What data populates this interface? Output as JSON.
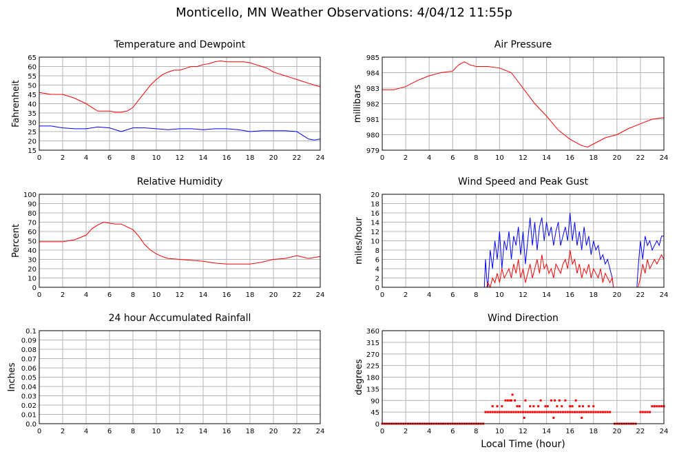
{
  "page": {
    "title": "Monticello, MN Weather Observations: 4/04/12 11:55p"
  },
  "colors": {
    "red": "#ff0000",
    "blue": "#0000ff",
    "grid": "#b4b4b4",
    "axis": "#000000"
  },
  "chart_data": [
    {
      "id": "temperature",
      "type": "line",
      "title": "Temperature and Dewpoint",
      "xlabel": "",
      "ylabel": "Fahrenheit",
      "xlim": [
        0,
        24
      ],
      "ylim": [
        15,
        65
      ],
      "xticks": [
        "0",
        "2",
        "4",
        "6",
        "8",
        "10",
        "12",
        "14",
        "16",
        "18",
        "20",
        "22",
        "24"
      ],
      "yticks": [
        "15",
        "20",
        "25",
        "30",
        "35",
        "40",
        "45",
        "50",
        "55",
        "60",
        "65"
      ],
      "grid": true,
      "series": [
        {
          "color": "#ff0000",
          "style": "line",
          "x": [
            0,
            1,
            2,
            3,
            4,
            4.5,
            5,
            5.5,
            6,
            6.5,
            7,
            7.5,
            8,
            8.5,
            9,
            9.5,
            10,
            10.5,
            11,
            11.5,
            12,
            12.5,
            13,
            13.5,
            14,
            14.5,
            15,
            15.5,
            16,
            16.5,
            17,
            17.5,
            18,
            18.5,
            19,
            19.5,
            20,
            20.5,
            21,
            21.5,
            22,
            22.5,
            23,
            23.5,
            24
          ],
          "y": [
            46,
            45,
            45,
            43,
            40,
            38,
            36,
            36,
            36,
            35.5,
            35.5,
            36,
            38,
            42,
            46,
            50,
            53,
            55.5,
            57,
            58,
            58,
            59,
            60,
            60,
            61,
            61.5,
            62.5,
            63,
            62.5,
            62.5,
            62.5,
            62.5,
            62,
            61,
            60,
            59,
            57,
            56,
            55,
            54,
            53,
            52,
            51,
            50,
            49
          ]
        },
        {
          "color": "#0000ff",
          "style": "line",
          "x": [
            0,
            1,
            2,
            3,
            4,
            5,
            6,
            7,
            8,
            9,
            10,
            11,
            12,
            13,
            14,
            15,
            16,
            17,
            18,
            19,
            20,
            21,
            22,
            22.5,
            23,
            23.5,
            24
          ],
          "y": [
            28,
            28,
            27,
            26.5,
            26.5,
            27.5,
            27,
            25,
            27,
            27,
            26.5,
            26,
            26.5,
            26.5,
            26,
            26.5,
            26.5,
            26,
            25,
            25.5,
            25.5,
            25.5,
            25,
            23,
            21,
            20.5,
            21
          ]
        }
      ]
    },
    {
      "id": "pressure",
      "type": "line",
      "title": "Air Pressure",
      "xlabel": "",
      "ylabel": "millibars",
      "xlim": [
        0,
        24
      ],
      "ylim": [
        979,
        985
      ],
      "xticks": [
        "0",
        "2",
        "4",
        "6",
        "8",
        "10",
        "12",
        "14",
        "16",
        "18",
        "20",
        "22",
        "24"
      ],
      "yticks": [
        "979",
        "980",
        "981",
        "982",
        "983",
        "984",
        "985"
      ],
      "grid": true,
      "series": [
        {
          "color": "#ff0000",
          "style": "line",
          "x": [
            0,
            1,
            2,
            3,
            4,
            5,
            6,
            6.5,
            7,
            7.5,
            8,
            9,
            10,
            11,
            12,
            13,
            14,
            15,
            16,
            17,
            17.5,
            18,
            19,
            20,
            21,
            22,
            23,
            24
          ],
          "y": [
            982.9,
            982.9,
            983.1,
            983.5,
            983.8,
            984.0,
            984.1,
            984.5,
            984.7,
            984.5,
            984.4,
            984.4,
            984.3,
            984.0,
            983.0,
            982.0,
            981.2,
            980.3,
            979.7,
            979.3,
            979.2,
            979.4,
            979.8,
            980.0,
            980.4,
            980.7,
            981.0,
            981.1
          ]
        }
      ]
    },
    {
      "id": "humidity",
      "type": "line",
      "title": "Relative Humidity",
      "xlabel": "",
      "ylabel": "Percent",
      "xlim": [
        0,
        24
      ],
      "ylim": [
        0,
        100
      ],
      "xticks": [
        "0",
        "2",
        "4",
        "6",
        "8",
        "10",
        "12",
        "14",
        "16",
        "18",
        "20",
        "22",
        "24"
      ],
      "yticks": [
        "0",
        "10",
        "20",
        "30",
        "40",
        "50",
        "60",
        "70",
        "80",
        "90",
        "100"
      ],
      "grid": true,
      "series": [
        {
          "color": "#ff0000",
          "style": "line",
          "x": [
            0,
            1,
            2,
            3,
            4,
            4.5,
            5,
            5.5,
            6,
            6.5,
            7,
            7.5,
            8,
            8.5,
            9,
            9.5,
            10,
            10.5,
            11,
            12,
            13,
            14,
            15,
            16,
            17,
            18,
            19,
            20,
            21,
            22,
            23,
            24
          ],
          "y": [
            49,
            49,
            49,
            51,
            56,
            63,
            67,
            70,
            69,
            68,
            68,
            65,
            62,
            55,
            46,
            40,
            36,
            33,
            31,
            30,
            29,
            28,
            26,
            25,
            25,
            25,
            27,
            30,
            31,
            34,
            31,
            33
          ]
        }
      ]
    },
    {
      "id": "wind",
      "type": "line",
      "title": "Wind Speed and Peak Gust",
      "xlabel": "",
      "ylabel": "miles/hour",
      "xlim": [
        0,
        24
      ],
      "ylim": [
        0,
        20
      ],
      "xticks": [
        "0",
        "2",
        "4",
        "6",
        "8",
        "10",
        "12",
        "14",
        "16",
        "18",
        "20",
        "22",
        "24"
      ],
      "yticks": [
        "0",
        "2",
        "4",
        "6",
        "8",
        "10",
        "12",
        "14",
        "16",
        "18",
        "20"
      ],
      "grid": true,
      "series": [
        {
          "color": "#0000ff",
          "style": "line",
          "x": [
            0,
            8.7,
            8.8,
            8.9,
            9.0,
            9.2,
            9.4,
            9.6,
            9.8,
            10.0,
            10.2,
            10.4,
            10.6,
            10.8,
            11.0,
            11.2,
            11.4,
            11.6,
            11.8,
            12.0,
            12.2,
            12.4,
            12.6,
            12.8,
            13.0,
            13.2,
            13.4,
            13.6,
            13.8,
            14.0,
            14.2,
            14.4,
            14.6,
            14.8,
            15.0,
            15.2,
            15.4,
            15.6,
            15.8,
            16.0,
            16.2,
            16.4,
            16.6,
            16.8,
            17.0,
            17.2,
            17.4,
            17.6,
            17.8,
            18.0,
            18.2,
            18.4,
            18.6,
            18.8,
            19.0,
            19.2,
            19.4,
            19.6,
            19.7,
            21.7,
            21.8,
            22.0,
            22.2,
            22.4,
            22.6,
            22.8,
            23.0,
            23.2,
            23.4,
            23.6,
            23.8,
            24.0
          ],
          "y": [
            0,
            0,
            6,
            2,
            0,
            8,
            4,
            10,
            6,
            12,
            4,
            10,
            8,
            12,
            6,
            11,
            9,
            13,
            7,
            12,
            5,
            10,
            15,
            9,
            14,
            8,
            13,
            15,
            10,
            14,
            11,
            13,
            9,
            12,
            14,
            9,
            11,
            13,
            10,
            16,
            10,
            14,
            9,
            12,
            8,
            13,
            9,
            11,
            7,
            10,
            8,
            9,
            6,
            7,
            5,
            6,
            4,
            2,
            0,
            0,
            4,
            10,
            6,
            11,
            9,
            10,
            8,
            9,
            10,
            9,
            11,
            11
          ]
        },
        {
          "color": "#ff0000",
          "style": "line",
          "x": [
            0,
            8.9,
            9.0,
            9.2,
            9.4,
            9.6,
            9.8,
            10.0,
            10.2,
            10.4,
            10.6,
            10.8,
            11.0,
            11.2,
            11.4,
            11.6,
            11.8,
            12.0,
            12.2,
            12.4,
            12.6,
            12.8,
            13.0,
            13.2,
            13.4,
            13.6,
            13.8,
            14.0,
            14.2,
            14.4,
            14.6,
            14.8,
            15.0,
            15.2,
            15.4,
            15.6,
            15.8,
            16.0,
            16.2,
            16.4,
            16.6,
            16.8,
            17.0,
            17.2,
            17.4,
            17.6,
            17.8,
            18.0,
            18.2,
            18.4,
            18.6,
            18.8,
            19.0,
            19.2,
            19.4,
            19.6,
            19.7,
            21.8,
            22.0,
            22.2,
            22.4,
            22.6,
            22.8,
            23.0,
            23.2,
            23.4,
            23.6,
            23.8,
            24.0
          ],
          "y": [
            0,
            0,
            1,
            0,
            2,
            1,
            3,
            1,
            4,
            2,
            3,
            4,
            2,
            5,
            3,
            6,
            2,
            4,
            1,
            3,
            5,
            2,
            4,
            6,
            3,
            7,
            4,
            5,
            3,
            4,
            2,
            5,
            4,
            3,
            5,
            6,
            4,
            8,
            5,
            6,
            3,
            5,
            2,
            4,
            3,
            5,
            2,
            4,
            3,
            2,
            4,
            1,
            3,
            2,
            1,
            2,
            0,
            0,
            2,
            5,
            3,
            6,
            4,
            5,
            6,
            5,
            6,
            7,
            6
          ]
        }
      ]
    },
    {
      "id": "rain",
      "type": "line",
      "title": "24 hour Accumulated Rainfall",
      "xlabel": "",
      "ylabel": "Inches",
      "xlim": [
        0,
        24
      ],
      "ylim": [
        0,
        0.1
      ],
      "xticks": [
        "0",
        "2",
        "4",
        "6",
        "8",
        "10",
        "12",
        "14",
        "16",
        "18",
        "20",
        "22",
        "24"
      ],
      "yticks": [
        "0.0",
        "0.01",
        "0.02",
        "0.03",
        "0.04",
        "0.05",
        "0.06",
        "0.07",
        "0.08",
        "0.09",
        "0.1"
      ],
      "grid": true,
      "series": [
        {
          "color": "#ff0000",
          "style": "line",
          "x": [
            0,
            24
          ],
          "y": [
            0,
            0
          ]
        }
      ]
    },
    {
      "id": "direction",
      "type": "scatter",
      "title": "Wind Direction",
      "xlabel": "Local Time (hour)",
      "ylabel": "degrees",
      "xlim": [
        0,
        24
      ],
      "ylim": [
        0,
        360
      ],
      "xticks": [
        "0",
        "2",
        "4",
        "6",
        "8",
        "10",
        "12",
        "14",
        "16",
        "18",
        "20",
        "22",
        "24"
      ],
      "yticks": [
        "0",
        "45",
        "90",
        "135",
        "180",
        "225",
        "270",
        "315",
        "360"
      ],
      "grid": true,
      "series": [
        {
          "color": "#ff0000",
          "style": "dots",
          "x": [
            0.0,
            0.2,
            0.4,
            0.6,
            0.8,
            1.0,
            1.2,
            1.4,
            1.6,
            1.8,
            2.0,
            2.2,
            2.4,
            2.6,
            2.8,
            3.0,
            3.2,
            3.4,
            3.6,
            3.8,
            4.0,
            4.2,
            4.4,
            4.6,
            4.8,
            5.0,
            5.2,
            5.4,
            5.6,
            5.8,
            6.0,
            6.2,
            6.4,
            6.6,
            6.8,
            7.0,
            7.2,
            7.4,
            7.6,
            7.8,
            8.0,
            8.2,
            8.4,
            8.6,
            8.8,
            9.0,
            9.2,
            9.4,
            9.6,
            9.8,
            10.0,
            10.2,
            10.4,
            10.6,
            10.8,
            11.0,
            11.2,
            11.4,
            11.6,
            11.8,
            12.0,
            12.2,
            12.4,
            12.6,
            12.8,
            13.0,
            13.2,
            13.4,
            13.6,
            13.8,
            14.0,
            14.2,
            14.4,
            14.6,
            14.8,
            15.0,
            15.2,
            15.4,
            15.6,
            15.8,
            16.0,
            16.2,
            16.4,
            16.6,
            16.8,
            17.0,
            17.2,
            17.4,
            17.6,
            17.8,
            18.0,
            18.2,
            18.4,
            18.6,
            18.8,
            19.0,
            19.2,
            19.4,
            19.8,
            20.0,
            20.2,
            20.4,
            20.6,
            20.8,
            21.0,
            21.2,
            21.4,
            21.6,
            22.0,
            22.2,
            22.4,
            22.6,
            22.8,
            23.0,
            23.2,
            23.4,
            23.6,
            23.8,
            24.0,
            9.4,
            9.8,
            10.2,
            10.5,
            10.7,
            10.9,
            11.0,
            11.1,
            11.3,
            11.5,
            11.7,
            12.2,
            12.6,
            12.9,
            13.3,
            13.5,
            13.9,
            14.1,
            14.4,
            14.7,
            14.9,
            15.1,
            15.3,
            15.6,
            16.0,
            16.2,
            16.5,
            16.8,
            17.1,
            17.6,
            18.0,
            12.1,
            14.6,
            17.0
          ],
          "y": [
            0,
            0,
            0,
            0,
            0,
            0,
            0,
            0,
            0,
            0,
            0,
            0,
            0,
            0,
            0,
            0,
            0,
            0,
            0,
            0,
            0,
            0,
            0,
            0,
            0,
            0,
            0,
            0,
            0,
            0,
            0,
            0,
            0,
            0,
            0,
            0,
            0,
            0,
            0,
            0,
            0,
            0,
            0,
            0,
            45,
            45,
            45,
            45,
            45,
            45,
            45,
            45,
            45,
            45,
            45,
            45,
            45,
            45,
            45,
            45,
            45,
            45,
            45,
            45,
            45,
            45,
            45,
            45,
            45,
            45,
            45,
            45,
            45,
            45,
            45,
            45,
            45,
            45,
            45,
            45,
            45,
            45,
            45,
            45,
            45,
            45,
            45,
            45,
            45,
            45,
            45,
            45,
            45,
            45,
            45,
            45,
            45,
            45,
            0,
            0,
            0,
            0,
            0,
            0,
            0,
            0,
            0,
            0,
            45,
            45,
            45,
            45,
            45,
            67.5,
            67.5,
            67.5,
            67.5,
            67.5,
            67.5,
            67.5,
            67.5,
            67.5,
            90,
            90,
            90,
            90,
            112.5,
            90,
            67.5,
            67.5,
            90,
            67.5,
            67.5,
            67.5,
            90,
            67.5,
            67.5,
            90,
            90,
            67.5,
            90,
            67.5,
            90,
            67.5,
            67.5,
            90,
            67.5,
            67.5,
            67.5,
            67.5,
            22.5,
            22.5,
            22.5
          ]
        }
      ]
    }
  ]
}
